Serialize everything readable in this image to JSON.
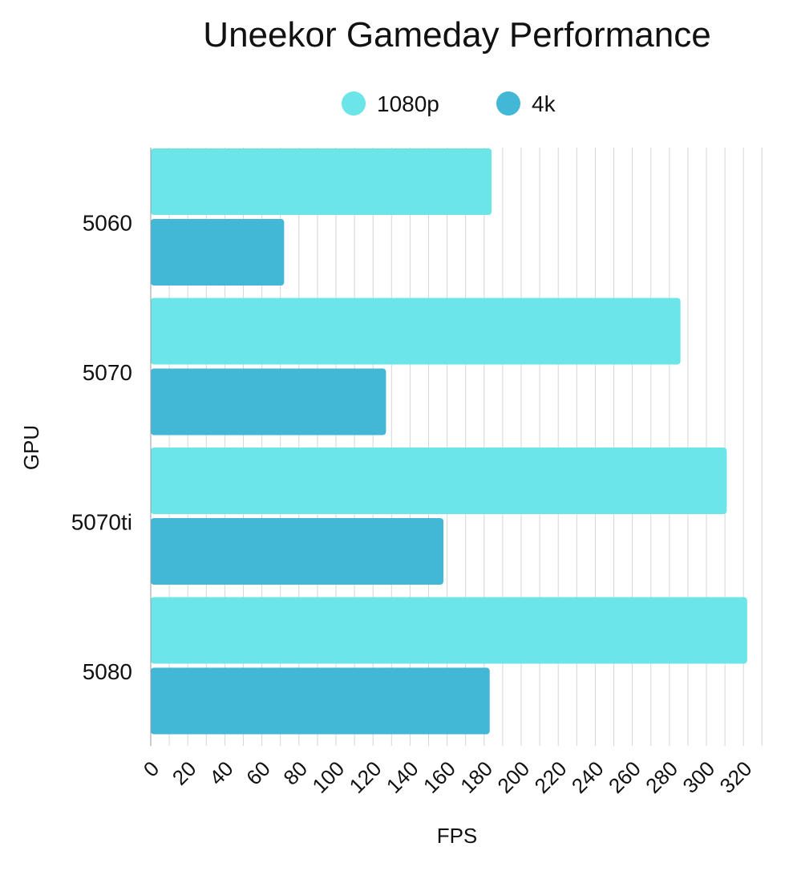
{
  "chart_data": {
    "type": "bar",
    "orientation": "horizontal",
    "title": "Uneekor Gameday Performance",
    "xlabel": "FPS",
    "ylabel": "GPU",
    "categories": [
      "5060",
      "5070",
      "5070ti",
      "5080"
    ],
    "series": [
      {
        "name": "1080p",
        "color": "#6be5e8",
        "values": [
          184,
          286,
          311,
          322
        ]
      },
      {
        "name": "4k",
        "color": "#43b7d6",
        "values": [
          72,
          127,
          158,
          183
        ]
      }
    ],
    "xlim": [
      0,
      330
    ],
    "xticks": [
      0,
      20,
      40,
      60,
      80,
      100,
      120,
      140,
      160,
      180,
      200,
      220,
      240,
      260,
      280,
      300,
      320
    ],
    "minor_grid_step": 10,
    "grid": true,
    "legend_position": "top-center"
  }
}
